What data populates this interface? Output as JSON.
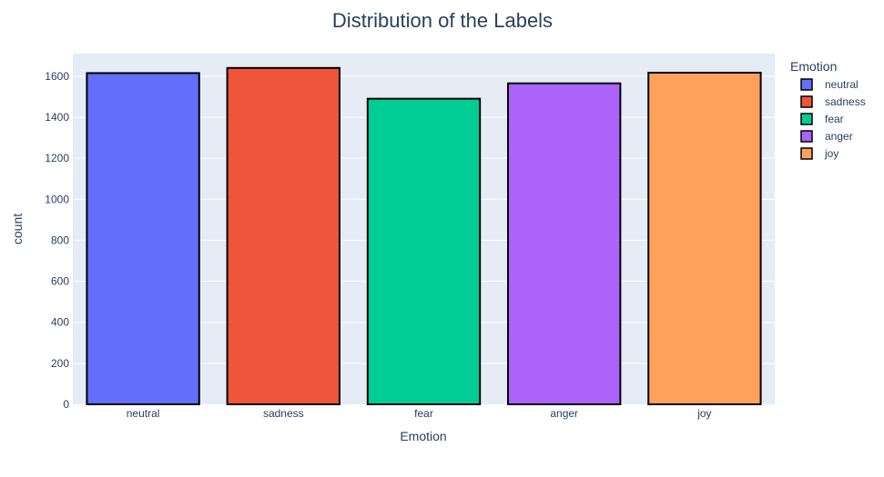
{
  "chart_data": {
    "type": "bar",
    "title": "Distribution of the Labels",
    "xlabel": "Emotion",
    "ylabel": "count",
    "categories": [
      "neutral",
      "sadness",
      "fear",
      "anger",
      "joy"
    ],
    "values": [
      1615,
      1640,
      1490,
      1565,
      1617
    ],
    "ylim": [
      0,
      1710
    ],
    "yticks": [
      0,
      200,
      400,
      600,
      800,
      1000,
      1200,
      1400,
      1600
    ],
    "grid": true,
    "legend": {
      "title": "Emotion",
      "placement": "right",
      "entries": [
        "neutral",
        "sadness",
        "fear",
        "anger",
        "joy"
      ]
    },
    "colors": [
      "#636efa",
      "#ef553b",
      "#00cc96",
      "#ab63fa",
      "#ffa15a"
    ],
    "plot_background": "#e5ecf6",
    "bar_outline": "#000000"
  }
}
